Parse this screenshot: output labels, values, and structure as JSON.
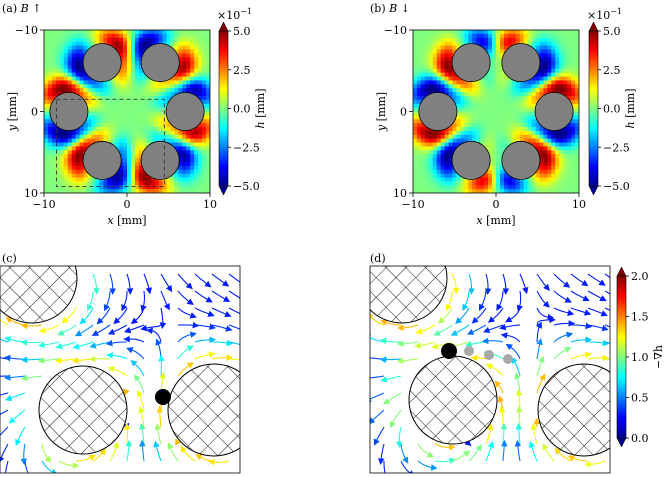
{
  "panels": {
    "a": {
      "label": "(a)",
      "title_sym": "B",
      "arrow": "↑"
    },
    "b": {
      "label": "(b)",
      "title_sym": "B",
      "arrow": "↓"
    },
    "c": {
      "label": "(c)"
    },
    "d": {
      "label": "(d)"
    }
  },
  "axes": {
    "xlabel_var": "x",
    "xlabel_unit": "[mm]",
    "ylabel_var": "y",
    "ylabel_unit": "[mm]",
    "x_ticks": [
      "-10",
      "0",
      "10"
    ],
    "y_ticks": [
      "-10",
      "0",
      "10"
    ]
  },
  "colorbar_h": {
    "label_var": "h",
    "label_unit": "[mm]",
    "exponent": "×10",
    "exponent_power": "−1",
    "ticks": [
      "5.0",
      "2.5",
      "0.0",
      "−2.5",
      "−5.0"
    ]
  },
  "colorbar_grad": {
    "label": "−∇h",
    "ticks": [
      "2.0",
      "1.5",
      "1.0",
      "0.5",
      "0.0"
    ]
  },
  "colors": {
    "obstacle": "#808080",
    "black_particle": "#000000",
    "ghost_particle": "#a9a9a9"
  },
  "chart_data": [
    {
      "panel": "a",
      "type": "heatmap",
      "title": "(a) B ↑",
      "xlabel": "x [mm]",
      "ylabel": "y [mm]",
      "xlim": [
        -10,
        10
      ],
      "ylim": [
        10,
        -10
      ],
      "colorbar": {
        "label": "h [mm]",
        "range": [
          -0.5,
          0.5
        ],
        "ticks": [
          5.0,
          2.5,
          0.0,
          -2.5,
          -5.0
        ],
        "multiplier": "×10^-1"
      },
      "obstacles_center_mm": [
        [
          -3,
          -6
        ],
        [
          4,
          -6
        ],
        [
          7,
          0
        ],
        [
          4,
          6
        ],
        [
          -3,
          6
        ],
        [
          -7,
          0
        ]
      ],
      "obstacle_radius_mm": 2.3,
      "dashed_box_mm": {
        "x": [
          -8.5,
          4.5
        ],
        "y": [
          -1.5,
          9.2
        ]
      }
    },
    {
      "panel": "b",
      "type": "heatmap",
      "title": "(b) B ↓",
      "xlabel": "x [mm]",
      "ylabel": "y [mm]",
      "xlim": [
        -10,
        10
      ],
      "ylim": [
        10,
        -10
      ],
      "colorbar": {
        "label": "h [mm]",
        "range": [
          -0.5,
          0.5
        ],
        "ticks": [
          5.0,
          2.5,
          0.0,
          -2.5,
          -5.0
        ],
        "multiplier": "×10^-1"
      },
      "obstacles_center_mm": [
        [
          -3,
          -6
        ],
        [
          3,
          -6
        ],
        [
          7,
          0
        ],
        [
          3,
          6
        ],
        [
          -3,
          6
        ],
        [
          -7,
          0
        ]
      ],
      "obstacle_radius_mm": 2.3
    },
    {
      "panel": "c",
      "type": "scatter",
      "description_only": false,
      "colorbar": {
        "label": "−∇h",
        "range": [
          0.0,
          2.0
        ]
      }
    },
    {
      "panel": "d",
      "type": "scatter",
      "colorbar": {
        "label": "−∇h",
        "range": [
          0.0,
          2.0
        ],
        "ticks": [
          2.0,
          1.5,
          1.0,
          0.5,
          0.0
        ]
      }
    }
  ]
}
